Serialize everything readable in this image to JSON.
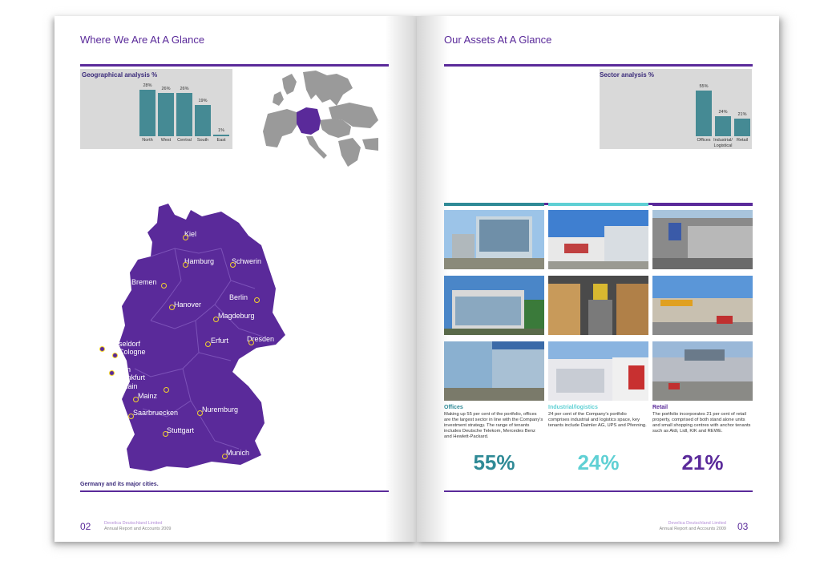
{
  "left_page": {
    "title": "Where We Are At A Glance",
    "page_number": "02",
    "footer_company": "Develica Deutschland Limited",
    "footer_report": "Annual Report and Accounts 2009",
    "map_caption": "Germany and its major cities.",
    "cities": [
      "Kiel",
      "Hamburg",
      "Schwerin",
      "Bremen",
      "Hanover",
      "Berlin",
      "Magdeburg",
      "Dusseldorf",
      "Cologne",
      "Erfurt",
      "Dresden",
      "Bonn",
      "Frankfurt",
      "am Main",
      "Mainz",
      "Saarbruecken",
      "Nuremburg",
      "Stuttgart",
      "Munich"
    ]
  },
  "right_page": {
    "title": "Our Assets At A Glance",
    "page_number": "03",
    "footer_company": "Develica Deutschland Limited",
    "footer_report": "Annual Report and Accounts 2009",
    "columns": [
      {
        "heading": "Offices",
        "color": "#2f8a96",
        "percent": "55%",
        "body": "Making up 55 per cent of the portfolio, offices are the largest sector in line with the Company's investment strategy. The range of tenants includes Deutsche Telekom, Mercedes Benz and Hewlett-Packard."
      },
      {
        "heading": "Industrial/logistics",
        "color": "#5fd0d4",
        "percent": "24%",
        "body": "24 per cent of the Company's portfolio comprises industrial and logistics space, key tenants include Daimler AG, UPS and Pfenning."
      },
      {
        "heading": "Retail",
        "color": "#5a2a9a",
        "percent": "21%",
        "body": "The portfolio incorporates 21 per cent of retail property, comprised of both stand alone units and small shopping centres with anchor tenants such as Aldi, Lidl, KIK and REWE."
      }
    ]
  },
  "chart_data": [
    {
      "type": "bar",
      "title": "Geographical analysis %",
      "categories": [
        "North",
        "West",
        "Central",
        "South",
        "East"
      ],
      "values": [
        28,
        26,
        26,
        19,
        1
      ],
      "value_labels": [
        "28%",
        "26%",
        "26%",
        "19%",
        "1%"
      ],
      "ylim": [
        0,
        30
      ],
      "color": "#458a94"
    },
    {
      "type": "bar",
      "title": "Sector analysis %",
      "categories": [
        "Offices",
        "Industrial/ Logistical",
        "Retail"
      ],
      "values": [
        55,
        24,
        21
      ],
      "value_labels": [
        "55%",
        "24%",
        "21%"
      ],
      "ylim": [
        0,
        60
      ],
      "color": "#458a94"
    }
  ]
}
